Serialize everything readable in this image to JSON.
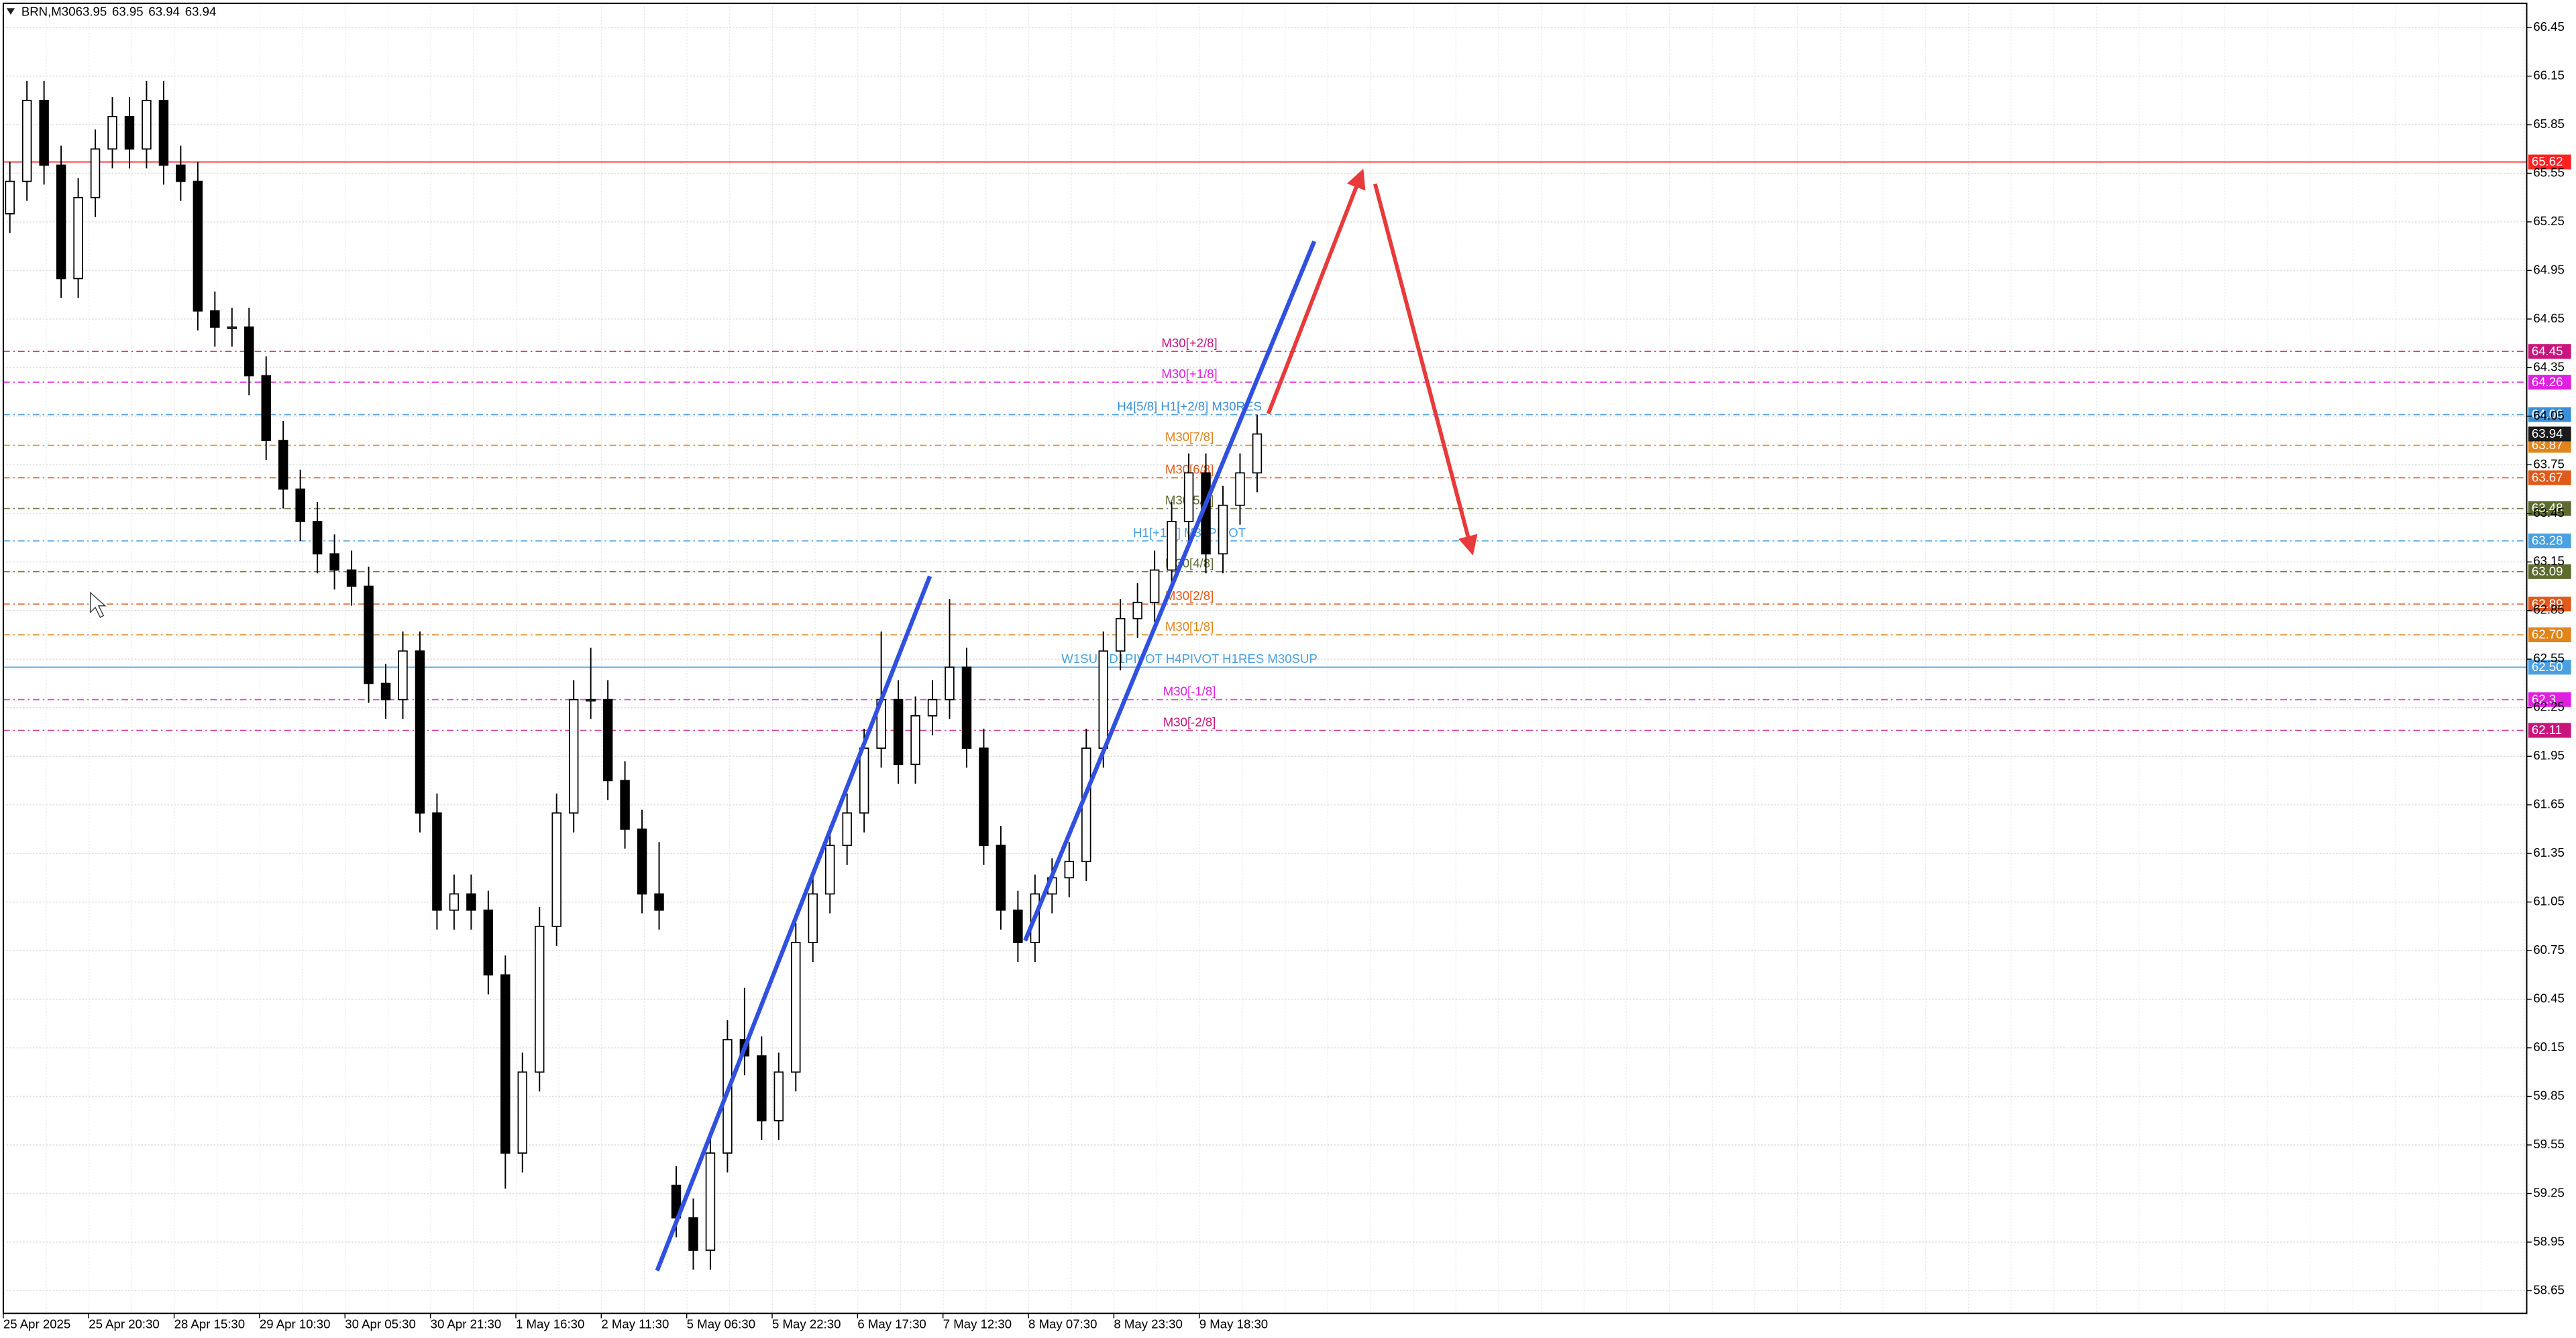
{
  "chart_data": {
    "type": "candlestick",
    "symbol": "BRN,M30",
    "quote": [
      63.95,
      63.95,
      63.94,
      63.94
    ],
    "last_price": 63.94,
    "ylim": [
      58.51,
      66.62
    ],
    "yticks": [
      66.45,
      66.15,
      65.85,
      65.55,
      65.25,
      64.95,
      64.65,
      64.35,
      64.05,
      63.75,
      63.45,
      63.15,
      62.85,
      62.55,
      62.25,
      61.95,
      61.65,
      61.35,
      61.05,
      60.75,
      60.45,
      60.15,
      59.85,
      59.55,
      59.25,
      58.95,
      58.65
    ],
    "grid": true,
    "up_color": "#ffffff",
    "down_color": "#000000",
    "categories": [
      "25 Apr 2025",
      null,
      null,
      null,
      null,
      "25 Apr 20:30",
      null,
      null,
      null,
      null,
      "28 Apr 15:30",
      null,
      null,
      null,
      null,
      "29 Apr 10:30",
      null,
      null,
      null,
      null,
      "30 Apr 05:30",
      null,
      null,
      null,
      null,
      "30 Apr 21:30",
      null,
      null,
      null,
      null,
      "1 May 16:30",
      null,
      null,
      null,
      null,
      "2 May 11:30",
      null,
      null,
      null,
      null,
      "5 May 06:30",
      null,
      null,
      null,
      null,
      "5 May 22:30",
      null,
      null,
      null,
      null,
      "6 May 17:30",
      null,
      null,
      null,
      null,
      "7 May 12:30",
      null,
      null,
      null,
      null,
      "8 May 07:30",
      null,
      null,
      null,
      null,
      "8 May 23:30",
      null,
      null,
      null,
      null,
      "9 May 18:30",
      null,
      null,
      null
    ],
    "candles": [
      [
        65.3,
        65.62,
        65.18,
        65.5
      ],
      [
        65.5,
        66.12,
        65.38,
        66.0
      ],
      [
        66.0,
        66.12,
        65.48,
        65.6
      ],
      [
        65.6,
        65.72,
        64.78,
        64.9
      ],
      [
        64.9,
        65.52,
        64.78,
        65.4
      ],
      [
        65.4,
        65.82,
        65.28,
        65.7
      ],
      [
        65.7,
        66.02,
        65.58,
        65.9
      ],
      [
        65.9,
        66.02,
        65.58,
        65.7
      ],
      [
        65.7,
        66.12,
        65.58,
        66.0
      ],
      [
        66.0,
        66.12,
        65.48,
        65.6
      ],
      [
        65.6,
        65.72,
        65.38,
        65.5
      ],
      [
        65.5,
        65.62,
        64.58,
        64.7
      ],
      [
        64.7,
        64.82,
        64.48,
        64.6
      ],
      [
        64.6,
        64.72,
        64.48,
        64.6
      ],
      [
        64.6,
        64.72,
        64.18,
        64.3
      ],
      [
        64.3,
        64.42,
        63.78,
        63.9
      ],
      [
        63.9,
        64.02,
        63.48,
        63.6
      ],
      [
        63.6,
        63.72,
        63.28,
        63.4
      ],
      [
        63.4,
        63.52,
        63.08,
        63.2
      ],
      [
        63.2,
        63.32,
        62.98,
        63.1
      ],
      [
        63.1,
        63.22,
        62.88,
        63.0
      ],
      [
        63.0,
        63.12,
        62.28,
        62.4
      ],
      [
        62.4,
        62.52,
        62.18,
        62.3
      ],
      [
        62.3,
        62.72,
        62.18,
        62.6
      ],
      [
        62.6,
        62.72,
        61.48,
        61.6
      ],
      [
        61.6,
        61.72,
        60.88,
        61.0
      ],
      [
        61.0,
        61.22,
        60.88,
        61.1
      ],
      [
        61.1,
        61.22,
        60.88,
        61.0
      ],
      [
        61.0,
        61.12,
        60.48,
        60.6
      ],
      [
        60.6,
        60.72,
        59.28,
        59.5
      ],
      [
        59.5,
        60.12,
        59.38,
        60.0
      ],
      [
        60.0,
        61.02,
        59.88,
        60.9
      ],
      [
        60.9,
        61.72,
        60.78,
        61.6
      ],
      [
        61.6,
        62.42,
        61.48,
        62.3
      ],
      [
        62.3,
        62.62,
        62.18,
        62.3
      ],
      [
        62.3,
        62.42,
        61.68,
        61.8
      ],
      [
        61.8,
        61.92,
        61.38,
        61.5
      ],
      [
        61.5,
        61.62,
        60.98,
        61.1
      ],
      [
        61.1,
        61.42,
        60.88,
        61.0
      ],
      [
        59.3,
        59.42,
        58.98,
        59.1
      ],
      [
        59.1,
        59.22,
        58.78,
        58.9
      ],
      [
        58.9,
        59.62,
        58.78,
        59.5
      ],
      [
        59.5,
        60.32,
        59.38,
        60.2
      ],
      [
        60.2,
        60.52,
        59.98,
        60.1
      ],
      [
        60.1,
        60.22,
        59.58,
        59.7
      ],
      [
        59.7,
        60.12,
        59.58,
        60.0
      ],
      [
        60.0,
        60.92,
        59.88,
        60.8
      ],
      [
        60.8,
        61.22,
        60.68,
        61.1
      ],
      [
        61.1,
        61.52,
        60.98,
        61.4
      ],
      [
        61.4,
        61.72,
        61.28,
        61.6
      ],
      [
        61.6,
        62.12,
        61.48,
        62.0
      ],
      [
        62.0,
        62.72,
        61.88,
        62.3
      ],
      [
        62.3,
        62.42,
        61.78,
        61.9
      ],
      [
        61.9,
        62.32,
        61.78,
        62.2
      ],
      [
        62.2,
        62.42,
        62.08,
        62.3
      ],
      [
        62.3,
        62.92,
        62.18,
        62.5
      ],
      [
        62.5,
        62.62,
        61.88,
        62.0
      ],
      [
        62.0,
        62.12,
        61.28,
        61.4
      ],
      [
        61.4,
        61.52,
        60.88,
        61.0
      ],
      [
        61.0,
        61.12,
        60.68,
        60.8
      ],
      [
        60.8,
        61.22,
        60.68,
        61.1
      ],
      [
        61.1,
        61.32,
        60.98,
        61.2
      ],
      [
        61.2,
        61.42,
        61.08,
        61.3
      ],
      [
        61.3,
        62.12,
        61.18,
        62.0
      ],
      [
        62.0,
        62.72,
        61.88,
        62.6
      ],
      [
        62.6,
        62.92,
        62.48,
        62.8
      ],
      [
        62.8,
        63.02,
        62.68,
        62.9
      ],
      [
        62.9,
        63.22,
        62.78,
        63.1
      ],
      [
        63.1,
        63.52,
        62.98,
        63.4
      ],
      [
        63.4,
        63.82,
        63.28,
        63.7
      ],
      [
        63.7,
        63.82,
        63.08,
        63.2
      ],
      [
        63.2,
        63.62,
        63.08,
        63.5
      ],
      [
        63.5,
        63.82,
        63.38,
        63.7
      ],
      [
        63.7,
        64.06,
        63.58,
        63.94
      ]
    ],
    "levels": [
      {
        "value": 65.62,
        "color": "#ff2020",
        "style": "solid"
      },
      {
        "value": 64.45,
        "color": "#c8147d",
        "style": "dashdot",
        "label": "M30[+2/8]"
      },
      {
        "value": 64.26,
        "color": "#e020e0",
        "style": "dashdot",
        "label": "M30[+1/8]"
      },
      {
        "value": 64.06,
        "color": "#3a8fd8",
        "style": "dashdot",
        "label": "H4[5/8] H1[+2/8] M30RES"
      },
      {
        "value": 63.87,
        "color": "#e0841c",
        "style": "dashdot",
        "label": "M30[7/8]"
      },
      {
        "value": 63.67,
        "color": "#e05a1c",
        "style": "dashdot",
        "label": "M30[6/8]"
      },
      {
        "value": 63.48,
        "color": "#5c6b2e",
        "style": "dashdot",
        "label": "M30[5/8]"
      },
      {
        "value": 63.28,
        "color": "#4aa0e0",
        "style": "dashdot",
        "label": "H1[+1/8] M30PIVOT"
      },
      {
        "value": 63.09,
        "color": "#5c6b2e",
        "style": "dashdot",
        "label": "M30[4/8]"
      },
      {
        "value": 62.89,
        "color": "#e05a1c",
        "style": "dashdot",
        "label": "M30[2/8]"
      },
      {
        "value": 62.7,
        "value_label": "62.70",
        "color": "#e0841c",
        "style": "dashdot",
        "label": "M30[1/8]"
      },
      {
        "value": 62.5,
        "value_label": "62.50",
        "color": "#4aa0e0",
        "style": "solid",
        "label": "W1SUP D1PIVOT H4PIVOT H1RES M30SUP"
      },
      {
        "value": 62.3,
        "color": "#e020e0",
        "style": "dashdot",
        "label": "M30[-1/8]"
      },
      {
        "value": 62.11,
        "color": "#c8147d",
        "style": "dashdot",
        "label": "M30[-2/8]"
      }
    ]
  }
}
